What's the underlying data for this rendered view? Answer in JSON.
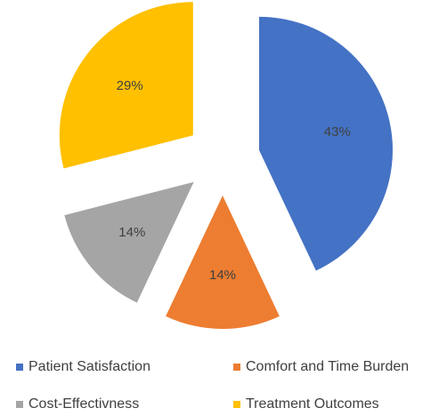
{
  "chart_data": {
    "type": "pie",
    "categories": [
      "Patient Satisfaction",
      "Comfort and Time Burden",
      "Cost-Effectivness",
      "Treatment Outcomes"
    ],
    "values": [
      43,
      14,
      14,
      29
    ],
    "value_labels": [
      "43%",
      "14%",
      "14%",
      "29%"
    ],
    "colors": [
      "#4472c4",
      "#ed7d31",
      "#a5a5a5",
      "#ffc000"
    ],
    "exploded": true,
    "legend": "bottom"
  }
}
